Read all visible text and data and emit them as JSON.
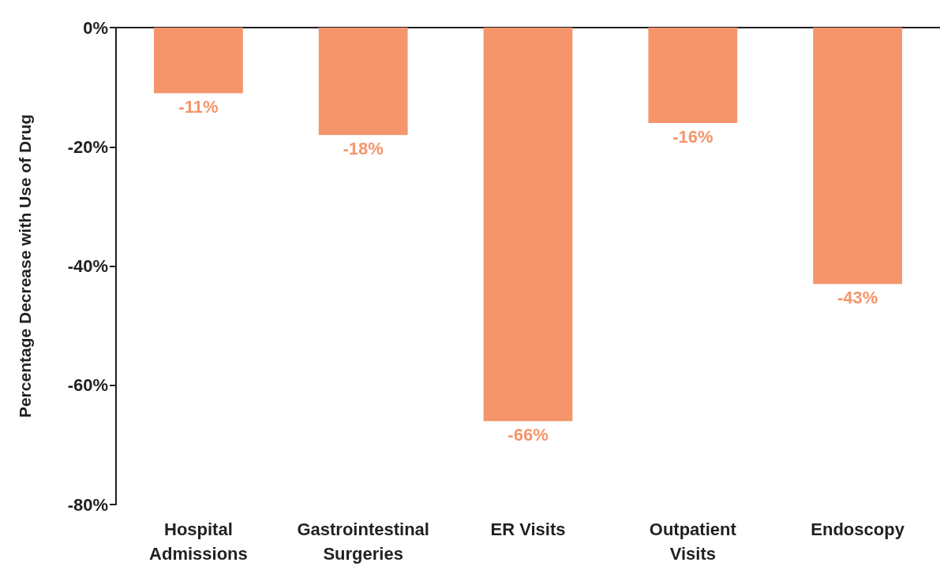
{
  "chart_data": {
    "type": "bar",
    "ylabel": "Percentage Decrease with Use of Drug",
    "categories": [
      "Hospital Admissions",
      "Gastrointestinal Surgeries",
      "ER Visits",
      "Outpatient Visits",
      "Endoscopy"
    ],
    "values": [
      -11,
      -18,
      -66,
      -16,
      -43
    ],
    "value_labels": [
      "-11%",
      "-18%",
      "-66%",
      "-16%",
      "-43%"
    ],
    "color": "#f5956b",
    "ylim": [
      -80,
      0
    ],
    "yticks": [
      {
        "value": -80,
        "label": "-80%"
      },
      {
        "value": -60,
        "label": "-60%"
      },
      {
        "value": -40,
        "label": "-40%"
      },
      {
        "value": -20,
        "label": "-20%"
      },
      {
        "value": 0,
        "label": "0%"
      }
    ],
    "grid": false
  }
}
